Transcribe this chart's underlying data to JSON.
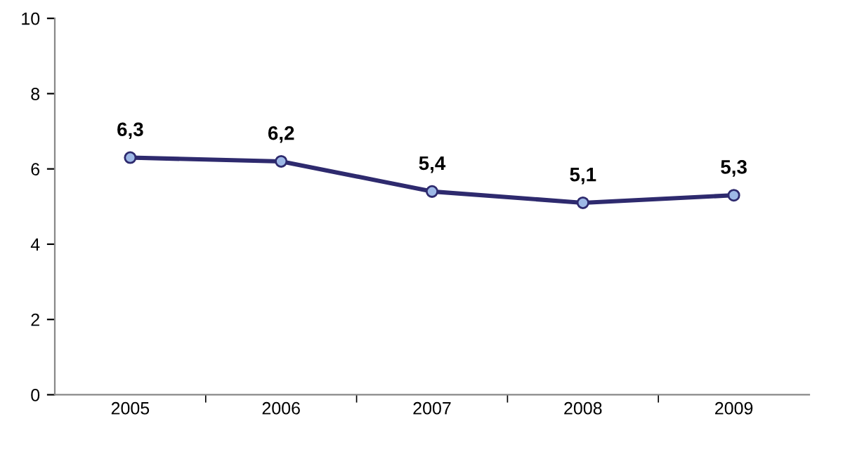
{
  "chart_data": {
    "type": "line",
    "categories": [
      "2005",
      "2006",
      "2007",
      "2008",
      "2009"
    ],
    "series": [
      {
        "color": "#2e2a6e",
        "values": [
          6.3,
          6.2,
          5.4,
          5.1,
          5.3
        ],
        "value_labels": [
          "6,3",
          "6,2",
          "5,4",
          "5,1",
          "5,3"
        ]
      }
    ],
    "ylim": [
      0,
      10
    ],
    "yticks": [
      0,
      2,
      4,
      6,
      8,
      10
    ],
    "grid": false,
    "legend": false,
    "marker": "circle",
    "line_style": "solid"
  }
}
